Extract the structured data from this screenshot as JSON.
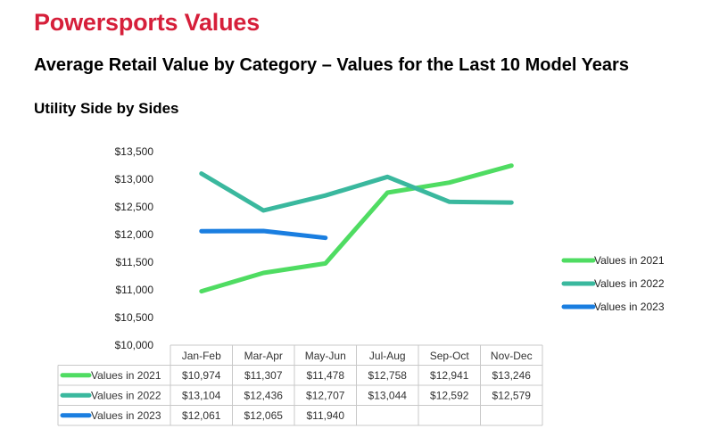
{
  "header": {
    "brand": "Powersports Values",
    "subtitle": "Average Retail Value by Category – Values for the Last 10 Model Years",
    "section": "Utility Side by Sides"
  },
  "colors": {
    "brand": "#d61f3a",
    "series_2021": "#4fdc62",
    "series_2022": "#3ab89e",
    "series_2023": "#1a7ee0",
    "grid": "#c8c8c8"
  },
  "chart_data": {
    "type": "line",
    "categories": [
      "Jan-Feb",
      "Mar-Apr",
      "May-Jun",
      "Jul-Aug",
      "Sep-Oct",
      "Nov-Dec"
    ],
    "series": [
      {
        "name": "Values in 2021",
        "values": [
          10974,
          11307,
          11478,
          12758,
          12941,
          13246
        ],
        "labels": [
          "$10,974",
          "$11,307",
          "$11,478",
          "$12,758",
          "$12,941",
          "$13,246"
        ]
      },
      {
        "name": "Values in 2022",
        "values": [
          13104,
          12436,
          12707,
          13044,
          12592,
          12579
        ],
        "labels": [
          "$13,104",
          "$12,436",
          "$12,707",
          "$13,044",
          "$12,592",
          "$12,579"
        ]
      },
      {
        "name": "Values in 2023",
        "values": [
          12061,
          12065,
          11940,
          null,
          null,
          null
        ],
        "labels": [
          "$12,061",
          "$12,065",
          "$11,940",
          "",
          "",
          ""
        ]
      }
    ],
    "yticks": [
      "$10,000",
      "$10,500",
      "$11,000",
      "$11,500",
      "$12,000",
      "$12,500",
      "$13,000",
      "$13,500"
    ],
    "ylim": [
      10000,
      13500
    ],
    "legend": "right",
    "data_table": true,
    "grid": false
  }
}
